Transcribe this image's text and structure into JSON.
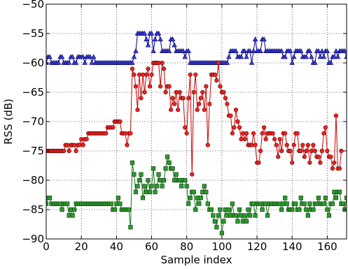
{
  "chart_data": {
    "type": "line",
    "title": "",
    "xlabel": "Sample index",
    "ylabel": "RSS (dB)",
    "xlim": [
      0,
      171
    ],
    "ylim": [
      -90,
      -50
    ],
    "xticks": [
      0,
      20,
      40,
      60,
      80,
      100,
      120,
      140,
      160
    ],
    "yticks": [
      -90,
      -85,
      -80,
      -75,
      -70,
      -65,
      -60,
      -55,
      -50
    ],
    "grid": true,
    "legend": "none",
    "series": [
      {
        "color": "#00008b",
        "marker": "triangle",
        "values": [
          -60,
          -59,
          -59,
          -60,
          -60,
          -60,
          -60,
          -60,
          -59,
          -59,
          -60,
          -60,
          -60,
          -60,
          -59,
          -59,
          -60,
          -60,
          -59,
          -59,
          -59,
          -59,
          -60,
          -59,
          -59,
          -59,
          -60,
          -59,
          -60,
          -60,
          -60,
          -60,
          -60,
          -60,
          -60,
          -60,
          -60,
          -60,
          -60,
          -60,
          -60,
          -60,
          -60,
          -60,
          -60,
          -60,
          -60,
          -60,
          -60,
          -60,
          -59,
          -58,
          -55,
          -55,
          -55,
          -55,
          -55,
          -56,
          -57,
          -55,
          -55,
          -58,
          -56,
          -55,
          -55,
          -56,
          -58,
          -58,
          -58,
          -58,
          -58,
          -56,
          -56,
          -57,
          -58,
          -58,
          -58,
          -58,
          -58,
          -59,
          -58,
          -58,
          -60,
          -60,
          -60,
          -60,
          -60,
          -60,
          -60,
          -60,
          -60,
          -60,
          -60,
          -60,
          -60,
          -60,
          -60,
          -60,
          -60,
          -60,
          -60,
          -60,
          -60,
          -60,
          -59,
          -58,
          -58,
          -58,
          -58,
          -59,
          -59,
          -59,
          -58,
          -58,
          -59,
          -58,
          -58,
          -60,
          -58,
          -56,
          -58,
          -58,
          -58,
          -56,
          -56,
          -58,
          -58,
          -58,
          -58,
          -58,
          -58,
          -58,
          -58,
          -58,
          -58,
          -59,
          -59,
          -58,
          -58,
          -58,
          -60,
          -59,
          -58,
          -58,
          -58,
          -58,
          -59,
          -59,
          -59,
          -58,
          -58,
          -59,
          -60,
          -60,
          -58,
          -58,
          -59,
          -58,
          -59,
          -58,
          -58,
          -60,
          -60,
          -59,
          -59,
          -58,
          -59,
          -58,
          -58,
          -58,
          -58,
          -59,
          -59
        ]
      },
      {
        "color": "#cc0000",
        "marker": "circle",
        "values": [
          -75,
          -75,
          -75,
          -75,
          -75,
          -75,
          -75,
          -75,
          -75,
          -75,
          -75,
          -74,
          -74,
          -75,
          -74,
          -74,
          -74,
          -75,
          -74,
          -74,
          -73,
          -74,
          -73,
          -73,
          -72,
          -72,
          -72,
          -72,
          -72,
          -72,
          -72,
          -72,
          -72,
          -72,
          -72,
          -71,
          -71,
          -71,
          -71,
          -70,
          -70,
          -70,
          -70,
          -72,
          -72,
          -72,
          -74,
          -72,
          -72,
          -61,
          -62,
          -64,
          -68,
          -62,
          -66,
          -62,
          -65,
          -62,
          -61,
          -64,
          -62,
          -60,
          -60,
          -60,
          -60,
          -64,
          -60,
          -61,
          -65,
          -64,
          -64,
          -68,
          -66,
          -67,
          -65,
          -68,
          -65,
          -66,
          -66,
          -71,
          -72,
          -66,
          -62,
          -79,
          -65,
          -62,
          -68,
          -67,
          -66,
          -65,
          -68,
          -64,
          -74,
          -67,
          -62,
          -62,
          -62,
          -63,
          -60,
          -64,
          -65,
          -65,
          -66,
          -67,
          -69,
          -69,
          -72,
          -71,
          -68,
          -70,
          -71,
          -73,
          -72,
          -73,
          -72,
          -74,
          -74,
          -74,
          -72,
          -74,
          -77,
          -77,
          -75,
          -72,
          -71,
          -73,
          -72,
          -72,
          -72,
          -72,
          -73,
          -74,
          -76,
          -73,
          -75,
          -72,
          -72,
          -74,
          -75,
          -75,
          -77,
          -74,
          -72,
          -72,
          -75,
          -75,
          -74,
          -76,
          -75,
          -74,
          -77,
          -75,
          -74,
          -75,
          -76,
          -76,
          -77,
          -75,
          -72,
          -71,
          -75,
          -76,
          -76,
          -78,
          -77,
          -69,
          -78,
          -78,
          -75
        ]
      },
      {
        "color": "#1a7a1a",
        "marker": "square",
        "values": [
          -84,
          -83,
          -83,
          -84,
          -84,
          -84,
          -84,
          -84,
          -84,
          -85,
          -84,
          -84,
          -84,
          -86,
          -85,
          -86,
          -85,
          -84,
          -84,
          -84,
          -84,
          -84,
          -84,
          -84,
          -84,
          -84,
          -84,
          -84,
          -84,
          -84,
          -84,
          -84,
          -84,
          -84,
          -84,
          -84,
          -84,
          -84,
          -85,
          -85,
          -84,
          -83,
          -84,
          -85,
          -85,
          -85,
          -85,
          -85,
          -88,
          -77,
          -79,
          -82,
          -81,
          -80,
          -79,
          -83,
          -81,
          -82,
          -80,
          -82,
          -81,
          -78,
          -82,
          -81,
          -79,
          -80,
          -81,
          -80,
          -78,
          -76,
          -77,
          -78,
          -78,
          -80,
          -79,
          -80,
          -80,
          -81,
          -80,
          -80,
          -81,
          -84,
          -83,
          -82,
          -82,
          -85,
          -83,
          -84,
          -83,
          -82,
          -81,
          -82,
          -84,
          -85,
          -85,
          -86,
          -87,
          -88,
          -86,
          -85,
          -89,
          -87,
          -85,
          -86,
          -85,
          -86,
          -84,
          -86,
          -86,
          -87,
          -85,
          -86,
          -87,
          -86,
          -87,
          -85,
          -86,
          -84,
          -84,
          -86,
          -84,
          -84,
          -84,
          -85,
          -84,
          -84,
          -86,
          -84,
          -84,
          -84,
          -84,
          -84,
          -84,
          -84,
          -85,
          -84,
          -83,
          -84,
          -85,
          -85,
          -85,
          -84,
          -84,
          -85,
          -85,
          -83,
          -84,
          -84,
          -85,
          -86,
          -84,
          -85,
          -85,
          -84,
          -84,
          -83,
          -84,
          -84,
          -84,
          -83,
          -85,
          -86,
          -84,
          -84,
          -82,
          -83,
          -82,
          -82,
          -84,
          -84,
          -85,
          -83
        ]
      }
    ]
  }
}
